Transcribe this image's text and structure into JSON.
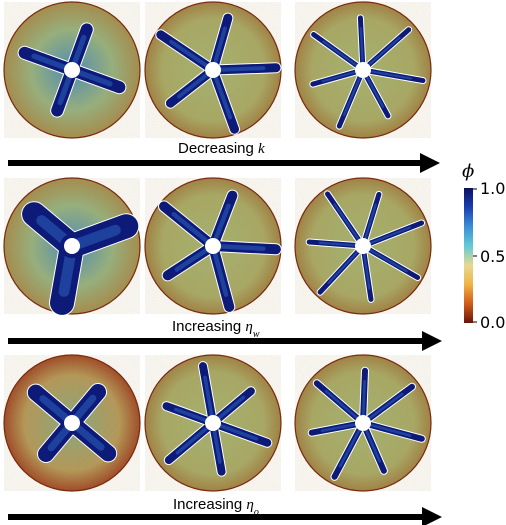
{
  "rows": [
    {
      "label_text": "Decreasing ",
      "label_var": "k",
      "label_sub": ""
    },
    {
      "label_text": "Increasing ",
      "label_var": "η",
      "label_sub": "w"
    },
    {
      "label_text": "Increasing ",
      "label_var": "η",
      "label_sub": "o"
    }
  ],
  "colorbar": {
    "symbol": "ϕ",
    "ticks": [
      "1.0",
      "0.5",
      "0.0"
    ],
    "colors": [
      "#0a1260",
      "#1a3fb0",
      "#3b8fd6",
      "#63c9d4",
      "#e6d890",
      "#f0b445",
      "#d05a1c",
      "#6a1508"
    ]
  },
  "colors": {
    "background": "#ffffff",
    "arrow": "#000000",
    "injected": "#0d1a78",
    "contour": "#ffffff"
  }
}
